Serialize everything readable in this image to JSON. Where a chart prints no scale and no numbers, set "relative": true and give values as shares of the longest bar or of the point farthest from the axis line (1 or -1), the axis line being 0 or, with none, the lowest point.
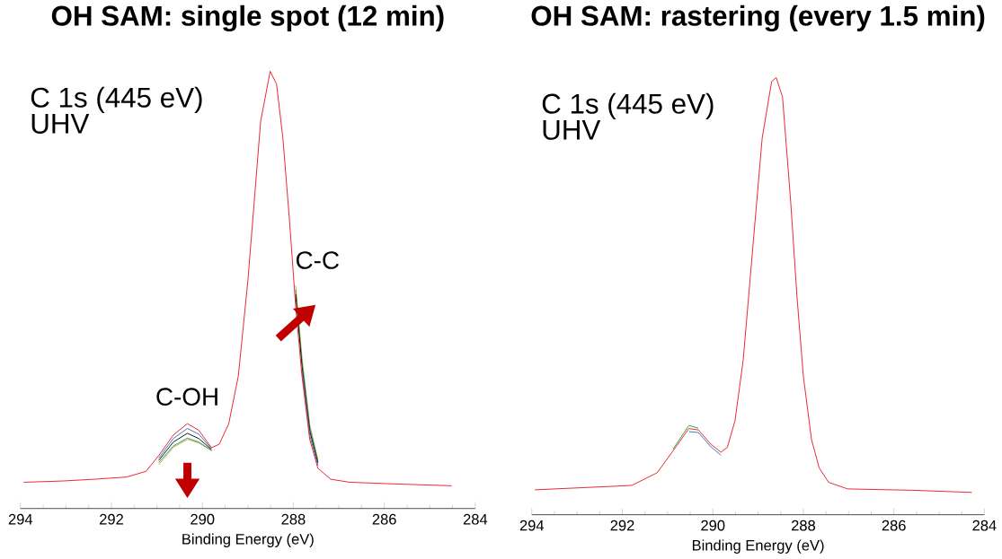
{
  "chart_data": [
    {
      "type": "line",
      "title": "OH SAM: single spot (12 min)",
      "xlabel": "Binding Energy (eV)",
      "relative": true,
      "x": [
        293.93,
        293.06,
        292.36,
        291.66,
        291.24,
        290.96,
        290.64,
        290.33,
        290.08,
        289.8,
        289.63,
        289.42,
        289.21,
        289.0,
        288.86,
        288.72,
        288.51,
        288.37,
        288.23,
        288.09,
        287.95,
        287.81,
        287.64,
        287.46,
        287.18,
        286.76,
        285.71,
        284.52
      ],
      "xlim": [
        294,
        284
      ],
      "xticks": [
        294,
        292,
        290,
        288,
        286,
        284
      ],
      "series": [
        {
          "color": "#b8b050",
          "values": [
            null,
            null,
            null,
            null,
            null,
            0.1,
            0.14,
            0.158,
            0.15,
            0.132,
            null,
            null,
            null,
            null,
            null,
            null,
            null,
            null,
            null,
            null,
            0.51,
            0.345,
            0.192,
            0.112,
            null,
            null,
            null,
            null
          ]
        },
        {
          "color": "#30a050",
          "values": [
            null,
            null,
            null,
            null,
            null,
            0.105,
            0.143,
            0.161,
            0.152,
            0.133,
            null,
            null,
            null,
            null,
            null,
            null,
            null,
            null,
            null,
            null,
            0.5,
            0.335,
            0.185,
            0.108,
            null,
            null,
            null,
            null
          ]
        },
        {
          "color": "#101010",
          "values": [
            null,
            null,
            null,
            null,
            null,
            0.11,
            0.152,
            0.172,
            0.16,
            0.135,
            null,
            null,
            null,
            null,
            null,
            null,
            null,
            null,
            null,
            null,
            0.49,
            0.325,
            0.178,
            0.104,
            null,
            null,
            null,
            null
          ]
        },
        {
          "color": "#3a6fc0",
          "values": [
            null,
            null,
            null,
            null,
            null,
            0.115,
            0.16,
            0.183,
            0.17,
            0.137,
            null,
            null,
            null,
            null,
            null,
            null,
            null,
            null,
            null,
            null,
            null,
            0.315,
            0.168,
            0.098,
            null,
            null,
            null,
            null
          ]
        },
        {
          "color": "#e8202a",
          "values": [
            0.06,
            0.063,
            0.067,
            0.072,
            0.085,
            0.121,
            0.168,
            0.194,
            0.179,
            0.139,
            0.147,
            0.194,
            0.303,
            0.521,
            0.702,
            0.885,
            1.0,
            0.971,
            0.847,
            0.666,
            0.463,
            0.303,
            0.158,
            0.092,
            0.067,
            0.06,
            0.056,
            0.052
          ]
        }
      ],
      "annotations": [
        "C 1s (445 eV)",
        "UHV",
        {
          "text": "C-OH",
          "x": 290.33,
          "y": 0.19
        },
        {
          "text": "C-C",
          "x": 287.9,
          "y": 0.45
        }
      ]
    },
    {
      "type": "line",
      "title": "OH SAM: rastering (every 1.5 min)",
      "xlabel": "Binding Energy (eV)",
      "relative": true,
      "x": [
        293.93,
        292.63,
        291.79,
        291.23,
        290.88,
        290.53,
        290.32,
        290.04,
        289.82,
        289.68,
        289.51,
        289.33,
        289.12,
        288.91,
        288.7,
        288.6,
        288.46,
        288.28,
        288.14,
        288.0,
        287.82,
        287.65,
        287.44,
        287.02,
        285.61,
        284.28
      ],
      "xlim": [
        294,
        284
      ],
      "xticks": [
        294,
        292,
        290,
        288,
        286,
        284
      ],
      "series": [
        {
          "color": "#3a6fc0",
          "values": [
            null,
            null,
            null,
            null,
            null,
            0.19,
            0.188,
            0.155,
            0.136,
            null,
            null,
            null,
            null,
            null,
            null,
            null,
            null,
            null,
            null,
            null,
            null,
            null,
            null,
            null,
            null,
            null
          ]
        },
        {
          "color": "#30a050",
          "values": [
            null,
            null,
            null,
            null,
            0.15,
            0.204,
            0.198,
            null,
            null,
            null,
            null,
            null,
            null,
            null,
            null,
            null,
            null,
            null,
            null,
            null,
            null,
            null,
            null,
            null,
            null,
            null
          ]
        },
        {
          "color": "#e8202a",
          "values": [
            0.057,
            0.063,
            0.067,
            0.096,
            0.146,
            0.197,
            0.194,
            0.161,
            0.143,
            0.154,
            0.215,
            0.353,
            0.607,
            0.861,
            0.991,
            1.0,
            0.955,
            0.716,
            0.498,
            0.317,
            0.172,
            0.107,
            0.074,
            0.059,
            0.056,
            0.051
          ]
        }
      ],
      "annotations": [
        "C 1s (445 eV)",
        "UHV"
      ]
    }
  ]
}
